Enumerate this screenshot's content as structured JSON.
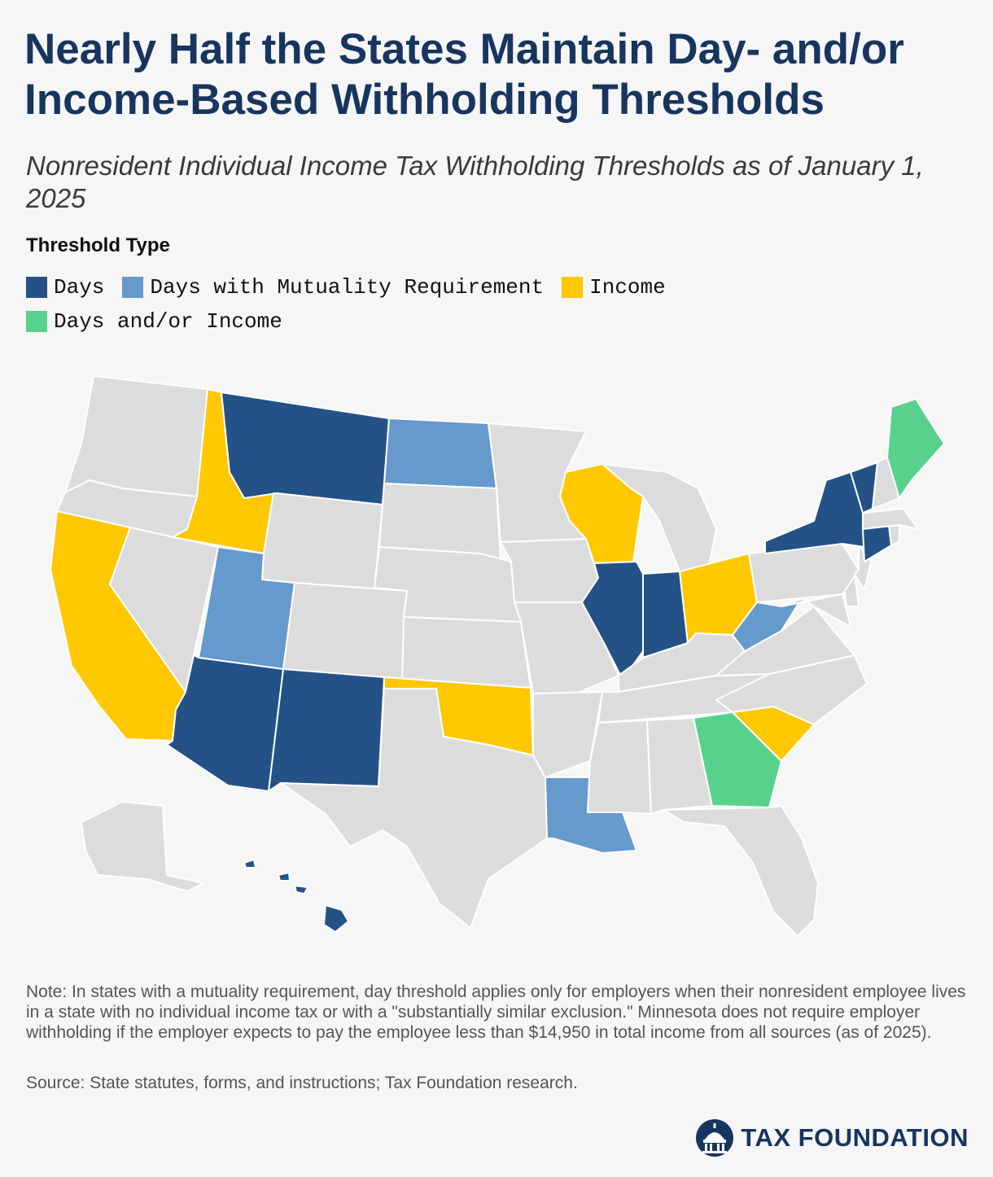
{
  "title": "Nearly Half the States Maintain Day- and/or Income-Based Withholding Thresholds",
  "subtitle": "Nonresident Individual Income Tax Withholding Thresholds as of January 1, 2025",
  "legend": {
    "heading": "Threshold Type",
    "items": [
      {
        "key": "days",
        "label": "Days",
        "color": "#245286"
      },
      {
        "key": "mutuality",
        "label": "Days with Mutuality Requirement",
        "color": "#6699cc"
      },
      {
        "key": "income",
        "label": "Income",
        "color": "#ffc800"
      },
      {
        "key": "both",
        "label": "Days and/or Income",
        "color": "#58d18c"
      }
    ]
  },
  "colors": {
    "none": "#dcdcdc",
    "background": "#f6f6f6",
    "title": "#17355e"
  },
  "states": {
    "days": [
      "MT",
      "IL",
      "IN",
      "AZ",
      "NM",
      "NY",
      "VT",
      "CT",
      "HI"
    ],
    "mutuality": [
      "ND",
      "UT",
      "WV",
      "LA"
    ],
    "income": [
      "ID",
      "CA",
      "WI",
      "OH",
      "OK",
      "SC"
    ],
    "both": [
      "ME",
      "GA"
    ],
    "none": [
      "WA",
      "OR",
      "NV",
      "WY",
      "CO",
      "SD",
      "NE",
      "KS",
      "TX",
      "MN",
      "IA",
      "MO",
      "AR",
      "MS",
      "AL",
      "TN",
      "KY",
      "MI",
      "PA",
      "NJ",
      "DE",
      "MD",
      "VA",
      "NC",
      "FL",
      "MA",
      "RI",
      "NH",
      "AK"
    ]
  },
  "note": "Note: In states with a mutuality requirement, day threshold applies only for employers when their nonresident employee lives in a state with no individual income tax or with a \"substantially similar exclusion.\" Minnesota does not require employer withholding if the employer expects to pay the employee less than $14,950 in total income from all sources (as of 2025).",
  "source": "Source: State statutes, forms, and instructions; Tax Foundation research.",
  "brand": {
    "name": "TAX FOUNDATION",
    "logo_icon": "capitol-dome-icon"
  }
}
